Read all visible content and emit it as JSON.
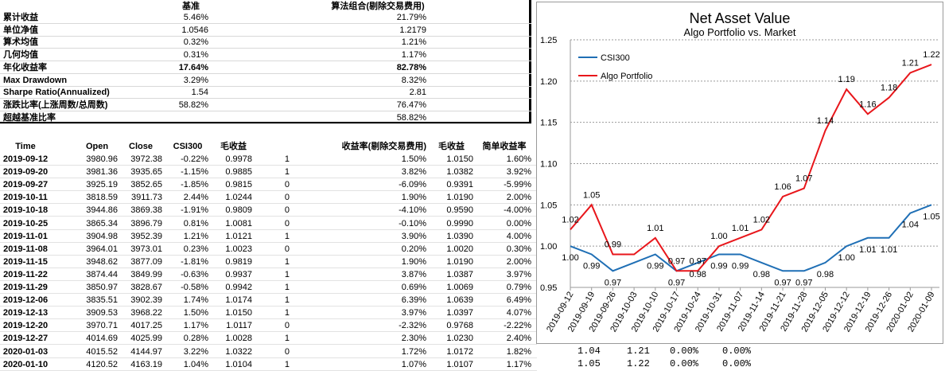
{
  "summary": {
    "col_benchmark": "基准",
    "col_algo": "算法组合(剔除交易费用)",
    "rows": [
      {
        "label": "累计收益",
        "bench": "5.46%",
        "algo": "21.79%",
        "bold": false
      },
      {
        "label": "单位净值",
        "bench": "1.0546",
        "algo": "1.2179",
        "bold": false
      },
      {
        "label": "算术均值",
        "bench": "0.32%",
        "algo": "1.21%",
        "bold": false
      },
      {
        "label": "几何均值",
        "bench": "0.31%",
        "algo": "1.17%",
        "bold": false
      },
      {
        "label": "年化收益率",
        "bench": "17.64%",
        "algo": "82.78%",
        "bold": true
      },
      {
        "label": "Max Drawdown",
        "bench": "3.29%",
        "algo": "8.32%",
        "bold": false
      },
      {
        "label": "Sharpe Ratio(Annualized)",
        "bench": "1.54",
        "algo": "2.81",
        "bold": false
      },
      {
        "label": "涨跌比率(上涨周数/总周数)",
        "bench": "58.82%",
        "algo": "76.47%",
        "bold": false
      },
      {
        "label": "超越基准比率",
        "bench": "",
        "algo": "58.82%",
        "bold": false
      }
    ]
  },
  "table": {
    "headers": [
      "Time",
      "Open",
      "Close",
      "CSI300",
      "毛收益",
      "",
      "收益率(剔除交易费用)",
      "毛收益",
      "简单收益率"
    ],
    "rows": [
      [
        "2019-09-12",
        "3980.96",
        "3972.38",
        "-0.22%",
        "0.9978",
        "1",
        "1.50%",
        "1.0150",
        "1.60%"
      ],
      [
        "2019-09-20",
        "3981.36",
        "3935.65",
        "-1.15%",
        "0.9885",
        "1",
        "3.82%",
        "1.0382",
        "3.92%"
      ],
      [
        "2019-09-27",
        "3925.19",
        "3852.65",
        "-1.85%",
        "0.9815",
        "0",
        "-6.09%",
        "0.9391",
        "-5.99%"
      ],
      [
        "2019-10-11",
        "3818.59",
        "3911.73",
        "2.44%",
        "1.0244",
        "0",
        "1.90%",
        "1.0190",
        "2.00%"
      ],
      [
        "2019-10-18",
        "3944.86",
        "3869.38",
        "-1.91%",
        "0.9809",
        "0",
        "-4.10%",
        "0.9590",
        "-4.00%"
      ],
      [
        "2019-10-25",
        "3865.34",
        "3896.79",
        "0.81%",
        "1.0081",
        "0",
        "-0.10%",
        "0.9990",
        "0.00%"
      ],
      [
        "2019-11-01",
        "3904.98",
        "3952.39",
        "1.21%",
        "1.0121",
        "1",
        "3.90%",
        "1.0390",
        "4.00%"
      ],
      [
        "2019-11-08",
        "3964.01",
        "3973.01",
        "0.23%",
        "1.0023",
        "0",
        "0.20%",
        "1.0020",
        "0.30%"
      ],
      [
        "2019-11-15",
        "3948.62",
        "3877.09",
        "-1.81%",
        "0.9819",
        "1",
        "1.90%",
        "1.0190",
        "2.00%"
      ],
      [
        "2019-11-22",
        "3874.44",
        "3849.99",
        "-0.63%",
        "0.9937",
        "1",
        "3.87%",
        "1.0387",
        "3.97%"
      ],
      [
        "2019-11-29",
        "3850.97",
        "3828.67",
        "-0.58%",
        "0.9942",
        "1",
        "0.69%",
        "1.0069",
        "0.79%"
      ],
      [
        "2019-12-06",
        "3835.51",
        "3902.39",
        "1.74%",
        "1.0174",
        "1",
        "6.39%",
        "1.0639",
        "6.49%"
      ],
      [
        "2019-12-13",
        "3909.53",
        "3968.22",
        "1.50%",
        "1.0150",
        "1",
        "3.97%",
        "1.0397",
        "4.07%"
      ],
      [
        "2019-12-20",
        "3970.71",
        "4017.25",
        "1.17%",
        "1.0117",
        "0",
        "-2.32%",
        "0.9768",
        "-2.22%"
      ],
      [
        "2019-12-27",
        "4014.69",
        "4025.99",
        "0.28%",
        "1.0028",
        "1",
        "2.30%",
        "1.0230",
        "2.40%"
      ],
      [
        "2020-01-03",
        "4015.52",
        "4144.97",
        "3.22%",
        "1.0322",
        "0",
        "1.72%",
        "1.0172",
        "1.82%"
      ],
      [
        "2020-01-10",
        "4120.52",
        "4163.19",
        "1.04%",
        "1.0104",
        "1",
        "1.07%",
        "1.0107",
        "1.17%"
      ]
    ]
  },
  "behind_chart": [
    {
      "a": "1.04",
      "b": "1.21",
      "c": "0.00%",
      "d": "0.00%"
    },
    {
      "a": "1.05",
      "b": "1.22",
      "c": "0.00%",
      "d": "0.00%"
    }
  ],
  "chart_data": {
    "type": "line",
    "title": "Net Asset Value",
    "subtitle": "Algo Portfolio  vs.  Market",
    "x": [
      "2019-09-12",
      "2019-09-19",
      "2019-09-26",
      "2019-10-03",
      "2019-10-10",
      "2019-10-17",
      "2019-10-24",
      "2019-10-31",
      "2019-11-07",
      "2019-11-14",
      "2019-11-21",
      "2019-11-28",
      "2019-12-05",
      "2019-12-12",
      "2019-12-19",
      "2019-12-26",
      "2020-01-02",
      "2020-01-09"
    ],
    "ylim": [
      0.95,
      1.25
    ],
    "yticks": [
      "0.95",
      "1.00",
      "1.05",
      "1.10",
      "1.15",
      "1.20",
      "1.25"
    ],
    "grid": true,
    "legend_position": "top-left",
    "series": [
      {
        "name": "CSI300",
        "color": "#1f6fb5",
        "values": [
          1.0,
          0.99,
          0.97,
          0.98,
          0.99,
          0.97,
          0.98,
          0.99,
          0.99,
          0.98,
          0.97,
          0.97,
          0.98,
          1.0,
          1.01,
          1.01,
          1.04,
          1.05
        ],
        "labels": [
          "1.00",
          "0.99",
          "0.97",
          "",
          "0.99",
          "0.97",
          "0.98",
          "0.99",
          "0.99",
          "0.98",
          "0.97",
          "0.97",
          "0.98",
          "1.00",
          "1.01",
          "1.01",
          "1.04",
          "1.05"
        ]
      },
      {
        "name": "Algo Portfolio",
        "color": "#e8161b",
        "values": [
          1.02,
          1.05,
          0.99,
          0.99,
          1.01,
          0.97,
          0.97,
          1.0,
          1.01,
          1.02,
          1.06,
          1.07,
          1.14,
          1.19,
          1.16,
          1.18,
          1.21,
          1.22
        ],
        "labels": [
          "1.02",
          "1.05",
          "0.99",
          "",
          "1.01",
          "0.97",
          "0.97",
          "1.00",
          "1.01",
          "1.02",
          "1.06",
          "1.07",
          "1.14",
          "1.19",
          "1.16",
          "1.18",
          "1.21",
          "1.22"
        ]
      }
    ]
  }
}
